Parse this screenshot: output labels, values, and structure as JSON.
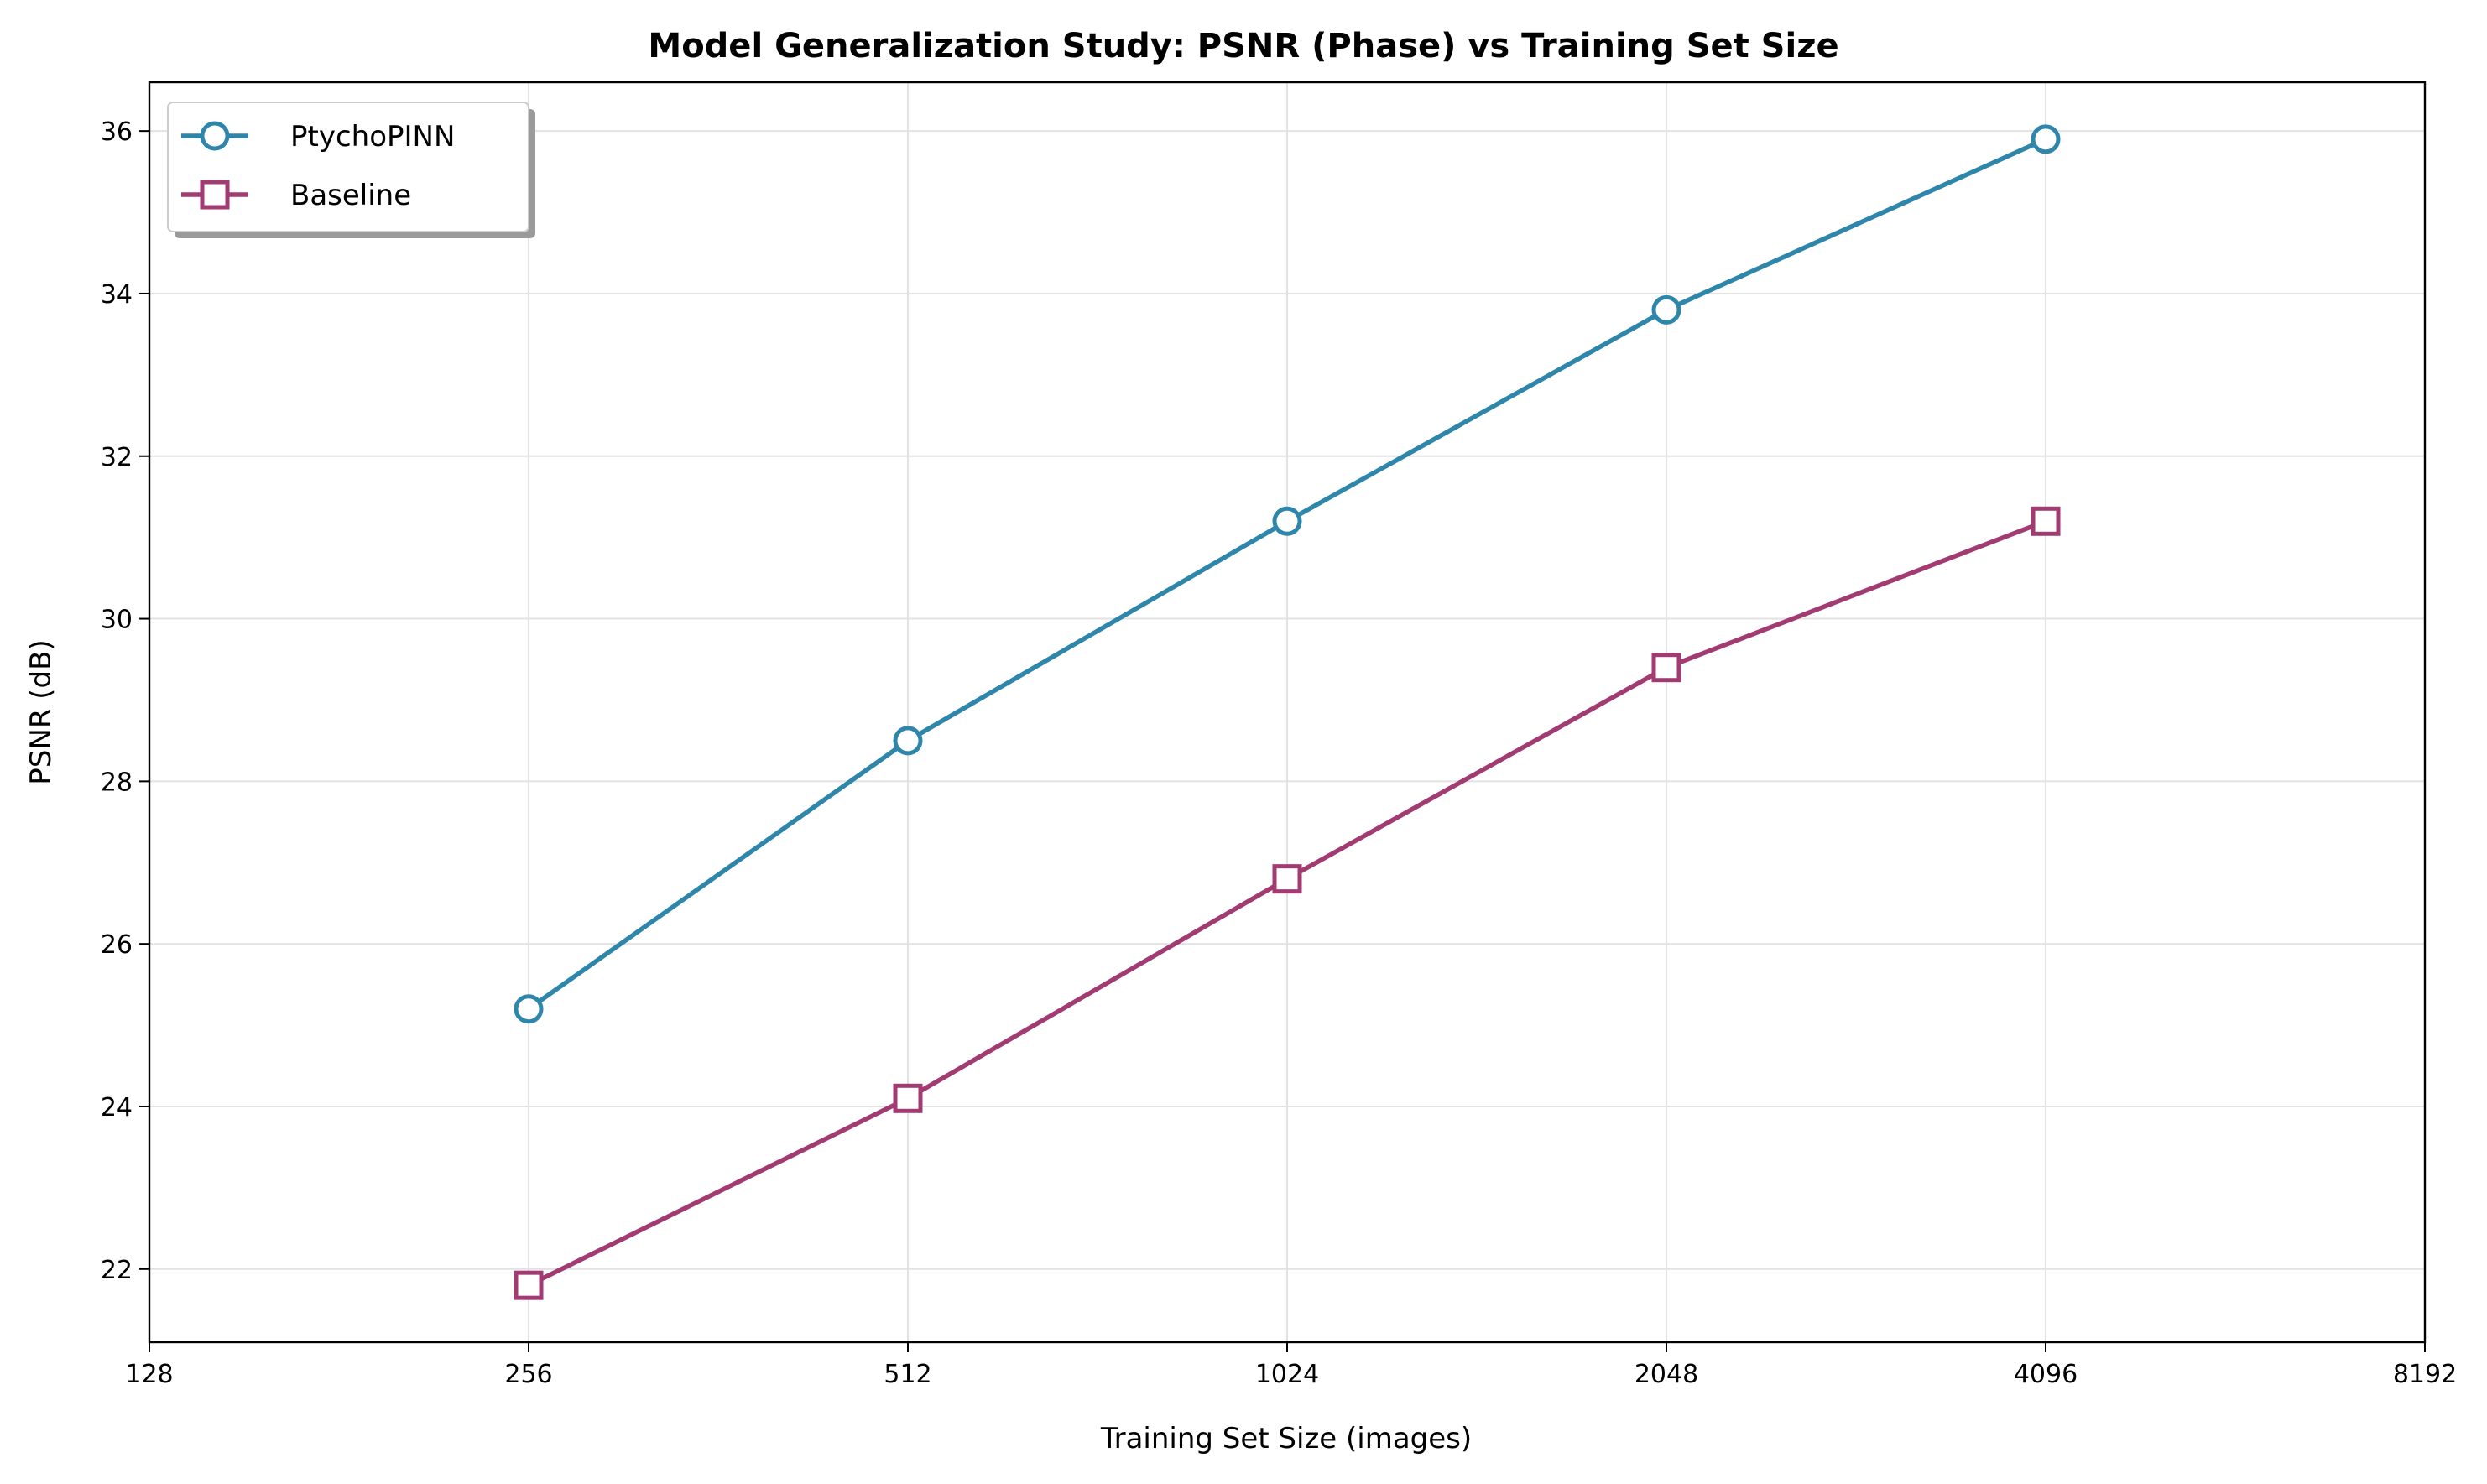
{
  "chart_data": {
    "type": "line",
    "title": "Model Generalization Study: PSNR (Phase) vs Training Set Size",
    "xlabel": "Training Set Size (images)",
    "ylabel": "PSNR (dB)",
    "x_scale": "log2",
    "xlim": [
      128,
      8192
    ],
    "ylim": [
      21.1,
      36.6
    ],
    "x_ticks": [
      128,
      256,
      512,
      1024,
      2048,
      4096,
      8192
    ],
    "x_tick_labels": [
      "128",
      "256",
      "512",
      "1024",
      "2048",
      "4096",
      "8192"
    ],
    "y_ticks": [
      22,
      24,
      26,
      28,
      30,
      32,
      34,
      36
    ],
    "y_tick_labels": [
      "22",
      "24",
      "26",
      "28",
      "30",
      "32",
      "34",
      "36"
    ],
    "grid": true,
    "legend_position": "top-left",
    "x": [
      256,
      512,
      1024,
      2048,
      4096
    ],
    "series": [
      {
        "name": "PtychoPINN",
        "marker": "circle",
        "color": "#2e86ab",
        "values": [
          25.2,
          28.5,
          31.2,
          33.8,
          35.9
        ]
      },
      {
        "name": "Baseline",
        "marker": "square",
        "color": "#a23b72",
        "values": [
          21.8,
          24.1,
          26.8,
          29.4,
          31.2
        ]
      }
    ]
  }
}
